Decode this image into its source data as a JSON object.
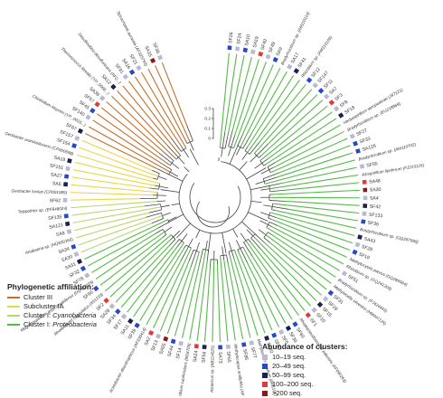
{
  "phylo_legend": {
    "title": "Phylogenetic affiliation:",
    "items": [
      {
        "text": "Cluster III",
        "color": "#c0712e"
      },
      {
        "text": "Subcluster IA",
        "color": "#e8d64a"
      },
      {
        "text_pre": "Cluster I: ",
        "text_it": "Cyanobacteria",
        "color": "#b7d66f"
      },
      {
        "text_pre": "Cluster I: ",
        "text_it": "Proteobacteria",
        "color": "#56b94a"
      }
    ]
  },
  "abundance_legend": {
    "title": "Abundance of clusters:",
    "items": [
      {
        "text": "10–19 seq.",
        "color": "#b9b9d3"
      },
      {
        "text": "20–49 seq.",
        "color": "#2748c7"
      },
      {
        "text": "50–99 seq.",
        "color": "#1a2250"
      },
      {
        "text": "100–200 seq.",
        "color": "#e03a3a"
      },
      {
        "text": ">200 seq.",
        "color": "#8b1a1a"
      }
    ]
  },
  "scale": {
    "ticks": [
      "0.3",
      "0.2",
      "0.1",
      "0"
    ]
  },
  "tree": {
    "colors": {
      "cluster_iii": "#c0712e",
      "subcluster_ia": "#e8d64a",
      "cyanobacteria": "#b7d66f",
      "proteobacteria": "#56b94a",
      "inner": "#444444"
    },
    "leaves": [
      {
        "label": "SF26",
        "abund": 1,
        "group": "proteobacteria"
      },
      {
        "label": "SF24",
        "abund": 0,
        "group": "proteobacteria"
      },
      {
        "label": "SA10",
        "abund": 1,
        "group": "proteobacteria"
      },
      {
        "label": "SA19",
        "abund": 0,
        "group": "proteobacteria"
      },
      {
        "label": "SF40",
        "abund": 3,
        "group": "proteobacteria"
      },
      {
        "label": "SF49",
        "abund": 0,
        "group": "proteobacteria"
      },
      {
        "label": "SA9",
        "abund": 1,
        "group": "proteobacteria"
      },
      {
        "label": "Bradyrhizobium sp. (AM110114)",
        "ref": true,
        "group": "proteobacteria"
      },
      {
        "label": "SA17",
        "abund": 0,
        "group": "proteobacteria"
      },
      {
        "label": "SF41",
        "abund": 2,
        "group": "proteobacteria"
      },
      {
        "label": "Rhizobium sp. (AM110105)",
        "ref": true,
        "group": "proteobacteria"
      },
      {
        "label": "SF12",
        "abund": 1,
        "group": "proteobacteria"
      },
      {
        "label": "SF147",
        "abund": 0,
        "group": "proteobacteria"
      },
      {
        "label": "SF11",
        "abund": 1,
        "group": "proteobacteria"
      },
      {
        "label": "SA7",
        "abund": 0,
        "group": "proteobacteria"
      },
      {
        "label": "SF3",
        "abund": 3,
        "group": "proteobacteria"
      },
      {
        "label": "SF8",
        "abund": 0,
        "group": "proteobacteria"
      },
      {
        "label": "SF18",
        "abund": 2,
        "group": "proteobacteria"
      },
      {
        "label": "Herbaspirillum seropedicae (J97121)",
        "ref": true,
        "group": "proteobacteria"
      },
      {
        "label": "Bradyrhizobium sp. (EU218869)",
        "ref": true,
        "group": "proteobacteria"
      },
      {
        "label": "SF27",
        "abund": 0,
        "group": "proteobacteria"
      },
      {
        "label": "SF33",
        "abund": 1,
        "group": "proteobacteria"
      },
      {
        "label": "SA126",
        "abund": 1,
        "group": "proteobacteria"
      },
      {
        "label": "Bradyrhizobium sp. (AM110702)",
        "ref": true,
        "group": "proteobacteria"
      },
      {
        "label": "SF55",
        "abund": 0,
        "group": "proteobacteria"
      },
      {
        "label": "Azospirillum lipoferum (FJ223129)",
        "ref": true,
        "group": "proteobacteria"
      },
      {
        "label": "SA48",
        "abund": 3,
        "group": "proteobacteria"
      },
      {
        "label": "SA30",
        "abund": 4,
        "group": "proteobacteria"
      },
      {
        "label": "SA4",
        "abund": 0,
        "group": "proteobacteria"
      },
      {
        "label": "SF42",
        "abund": 2,
        "group": "proteobacteria"
      },
      {
        "label": "SF133",
        "abund": 0,
        "group": "proteobacteria"
      },
      {
        "label": "SF36",
        "abund": 1,
        "group": "proteobacteria"
      },
      {
        "label": "Bradyrhizobium sp. (GQ287998)",
        "ref": true,
        "group": "proteobacteria"
      },
      {
        "label": "SA43",
        "abund": 2,
        "group": "proteobacteria"
      },
      {
        "label": "SF29",
        "abund": 0,
        "group": "proteobacteria"
      },
      {
        "label": "SF19",
        "abund": 1,
        "group": "proteobacteria"
      },
      {
        "label": "Methylocystis parvus (GQ289564)",
        "ref": true,
        "group": "proteobacteria"
      },
      {
        "label": "Rhizobium sp. (GQ241303)",
        "ref": true,
        "group": "proteobacteria"
      },
      {
        "label": "SF51",
        "abund": 0,
        "group": "proteobacteria"
      },
      {
        "label": "Bradyrhizobium sp. (FJ424443)",
        "ref": true,
        "group": "proteobacteria"
      },
      {
        "label": "Methylocella silvestris (HM447125)",
        "ref": true,
        "group": "proteobacteria"
      },
      {
        "label": "SF31",
        "abund": 1,
        "group": "proteobacteria"
      },
      {
        "label": "SF28",
        "abund": 0,
        "group": "proteobacteria"
      },
      {
        "label": "SF15",
        "abund": 2,
        "group": "proteobacteria"
      },
      {
        "label": "SF10",
        "abund": 0,
        "group": "proteobacteria"
      },
      {
        "label": "SF1",
        "abund": 3,
        "group": "proteobacteria"
      },
      {
        "label": "Rhodopseudomonas palustris (AF090263)",
        "ref": true,
        "group": "proteobacteria"
      },
      {
        "label": "SF60",
        "abund": 1,
        "group": "proteobacteria"
      },
      {
        "label": "SF38",
        "abund": 2,
        "group": "proteobacteria"
      },
      {
        "label": "SF5",
        "abund": 0,
        "group": "proteobacteria"
      },
      {
        "label": "SF53",
        "abund": 1,
        "group": "proteobacteria"
      },
      {
        "label": "SF20",
        "abund": 2,
        "group": "proteobacteria"
      },
      {
        "label": "Methylosinus sporium (AM110713)",
        "ref": true,
        "group": "proteobacteria"
      },
      {
        "label": "SF77",
        "abund": 0,
        "group": "proteobacteria"
      },
      {
        "label": "SF85",
        "abund": 1,
        "group": "proteobacteria"
      },
      {
        "label": "Methylocapsa acidiphila (AF193700)",
        "ref": true,
        "group": "proteobacteria"
      },
      {
        "label": "SF65",
        "abund": 0,
        "group": "proteobacteria"
      },
      {
        "label": "SA73",
        "abund": 1,
        "group": "proteobacteria"
      },
      {
        "label": "Azoarcus sp. (AB114025)",
        "ref": true,
        "group": "proteobacteria"
      },
      {
        "label": "SF56",
        "abund": 2,
        "group": "proteobacteria"
      },
      {
        "label": "SA24",
        "abund": 3,
        "group": "proteobacteria"
      },
      {
        "label": "Azorhizobium caulinodans (M16709)",
        "ref": true,
        "group": "proteobacteria"
      },
      {
        "label": "SF14",
        "abund": 0,
        "group": "proteobacteria"
      },
      {
        "label": "SF44",
        "abund": 1,
        "group": "proteobacteria"
      },
      {
        "label": "SA55",
        "abund": 4,
        "group": "proteobacteria"
      },
      {
        "label": "SF13",
        "abund": 0,
        "group": "proteobacteria"
      },
      {
        "label": "SA2",
        "abund": 3,
        "group": "proteobacteria"
      },
      {
        "label": "Acetobacter diazotrophicus (AF030414)",
        "ref": true,
        "group": "proteobacteria"
      },
      {
        "label": "SF39",
        "abund": 1,
        "group": "proteobacteria"
      },
      {
        "label": "SA11",
        "abund": 2,
        "group": "proteobacteria"
      },
      {
        "label": "SF17",
        "abund": 0,
        "group": "proteobacteria"
      },
      {
        "label": "SF34",
        "abund": 1,
        "group": "proteobacteria"
      },
      {
        "label": "SA28",
        "abund": 0,
        "group": "proteobacteria"
      },
      {
        "label": "SF2",
        "abund": 3,
        "group": "proteobacteria"
      },
      {
        "label": "Rhodobacter capsulatus (X61233)",
        "ref": true,
        "group": "proteobacteria"
      },
      {
        "label": "SF66",
        "abund": 1,
        "group": "proteobacteria"
      },
      {
        "label": "Magnetospirillum gryphiswaldense (DQ862029)",
        "ref": true,
        "group": "proteobacteria"
      },
      {
        "label": "SF78",
        "abund": 0,
        "group": "proteobacteria"
      },
      {
        "label": "SF32",
        "abund": 1,
        "group": "proteobacteria"
      },
      {
        "label": "SA31",
        "abund": 2,
        "group": "proteobacteria"
      },
      {
        "label": "SA30",
        "abund": 0,
        "group": "cyanobacteria"
      },
      {
        "label": "SA34",
        "abund": 1,
        "group": "cyanobacteria"
      },
      {
        "label": "Anabaena sp. (HQ830160)",
        "ref": true,
        "group": "cyanobacteria"
      },
      {
        "label": "SA8",
        "abund": 0,
        "group": "cyanobacteria"
      },
      {
        "label": "SA121",
        "abund": 2,
        "group": "cyanobacteria"
      },
      {
        "label": "SF135",
        "abund": 1,
        "group": "cyanobacteria"
      },
      {
        "label": "Tolypothrix sp. (EF648024)",
        "ref": true,
        "group": "cyanobacteria"
      },
      {
        "label": "SF62",
        "abund": 0,
        "group": "subcluster_ia"
      },
      {
        "label": "Geobacter lovleyi (CP001089)",
        "ref": true,
        "group": "subcluster_ia"
      },
      {
        "label": "SA5",
        "abund": 2,
        "group": "subcluster_ia"
      },
      {
        "label": "SA27",
        "abund": 1,
        "group": "subcluster_ia"
      },
      {
        "label": "SF151",
        "abund": 0,
        "group": "subcluster_ia"
      },
      {
        "label": "SA18",
        "abund": 2,
        "group": "subcluster_ia"
      },
      {
        "label": "Geobacter uraniireducens (CP000698)",
        "ref": true,
        "group": "subcluster_ia"
      },
      {
        "label": "SF154",
        "abund": 1,
        "group": "subcluster_ia"
      },
      {
        "label": "SF157",
        "abund": 0,
        "group": "subcluster_ia"
      },
      {
        "label": "SF67",
        "abund": 2,
        "group": "cluster_iii"
      },
      {
        "label": "Clostridium kluyveri (YP_0016...)",
        "ref": true,
        "group": "cluster_iii"
      },
      {
        "label": "SF140",
        "abund": 0,
        "group": "cluster_iii"
      },
      {
        "label": "SF45",
        "abund": 1,
        "group": "cluster_iii"
      },
      {
        "label": "SF57",
        "abund": 3,
        "group": "cluster_iii"
      },
      {
        "label": "SA39",
        "abund": 0,
        "group": "cluster_iii"
      },
      {
        "label": "Thermococcus litoralis (YP_0068...)",
        "ref": true,
        "group": "cluster_iii"
      },
      {
        "label": "SA12",
        "abund": 2,
        "group": "cluster_iii"
      },
      {
        "label": "Desulfovibrio desulfuricans (AF2...)",
        "ref": true,
        "group": "cluster_iii"
      },
      {
        "label": "SF91",
        "abund": 0,
        "group": "cluster_iii"
      },
      {
        "label": "SA16",
        "abund": 1,
        "group": "cluster_iii"
      },
      {
        "label": "SF21",
        "abund": 0,
        "group": "cluster_iii"
      },
      {
        "label": "Spirochaeta aurantia (AF325793)",
        "ref": true,
        "group": "cluster_iii"
      },
      {
        "label": "SA15",
        "abund": 4,
        "group": "cluster_iii"
      },
      {
        "label": "SF30",
        "abund": 0,
        "group": "cluster_iii"
      }
    ]
  }
}
